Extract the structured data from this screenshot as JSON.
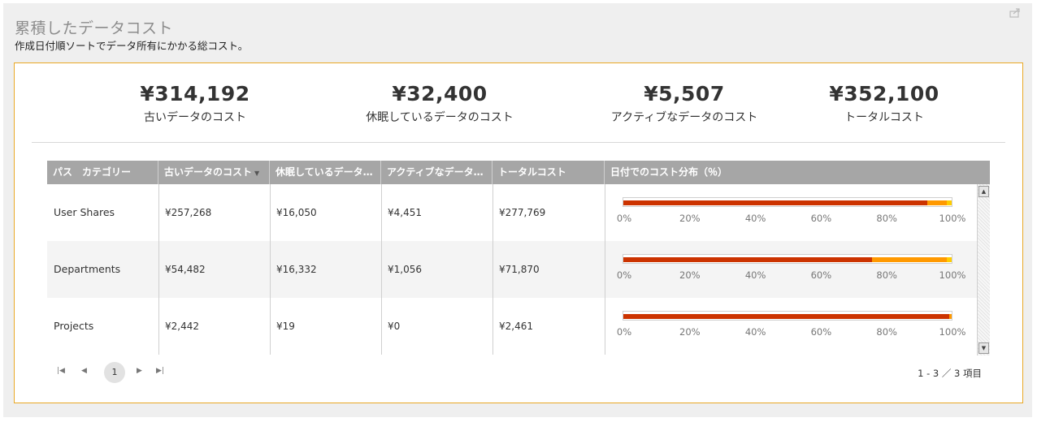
{
  "widget": {
    "title": "累積したデータコスト",
    "subtitle": "作成日付順ソートでデータ所有にかかる総コスト。",
    "export_icon": "export-icon"
  },
  "kpis": [
    {
      "value": "¥314,192",
      "label": "古いデータのコスト"
    },
    {
      "value": "¥32,400",
      "label": "休眠しているデータのコスト"
    },
    {
      "value": "¥5,507",
      "label": "アクティブなデータのコスト"
    },
    {
      "value": "¥352,100",
      "label": "トータルコスト"
    }
  ],
  "grid": {
    "columns": [
      {
        "label": "パス　カテゴリー"
      },
      {
        "label": "古いデータのコスト",
        "sorted": "desc"
      },
      {
        "label": "休眠しているデータ…"
      },
      {
        "label": "アクティブなデータ…"
      },
      {
        "label": "トータルコスト"
      },
      {
        "label": "日付でのコスト分布（％）"
      }
    ],
    "axis_ticks": [
      "0%",
      "20%",
      "40%",
      "60%",
      "80%",
      "100%"
    ],
    "colors": {
      "old": "#cc3300",
      "dormant": "#ff9900",
      "active": "#ffcc00"
    },
    "rows": [
      {
        "name": "User Shares",
        "old": "¥257,268",
        "dormant": "¥16,050",
        "active": "¥4,451",
        "total": "¥277,769",
        "dist": {
          "old": 92.6,
          "dormant": 5.8,
          "active": 1.6
        }
      },
      {
        "name": "Departments",
        "old": "¥54,482",
        "dormant": "¥16,332",
        "active": "¥1,056",
        "total": "¥71,870",
        "dist": {
          "old": 75.8,
          "dormant": 22.7,
          "active": 1.5
        }
      },
      {
        "name": "Projects",
        "old": "¥2,442",
        "dormant": "¥19",
        "active": "¥0",
        "total": "¥2,461",
        "dist": {
          "old": 99.2,
          "dormant": 0.8,
          "active": 0
        }
      }
    ]
  },
  "pager": {
    "first": "⏮",
    "prev": "◀",
    "current_page": "1",
    "next": "▶",
    "last": "⏭",
    "info": "1 - 3 ／ 3 項目"
  }
}
